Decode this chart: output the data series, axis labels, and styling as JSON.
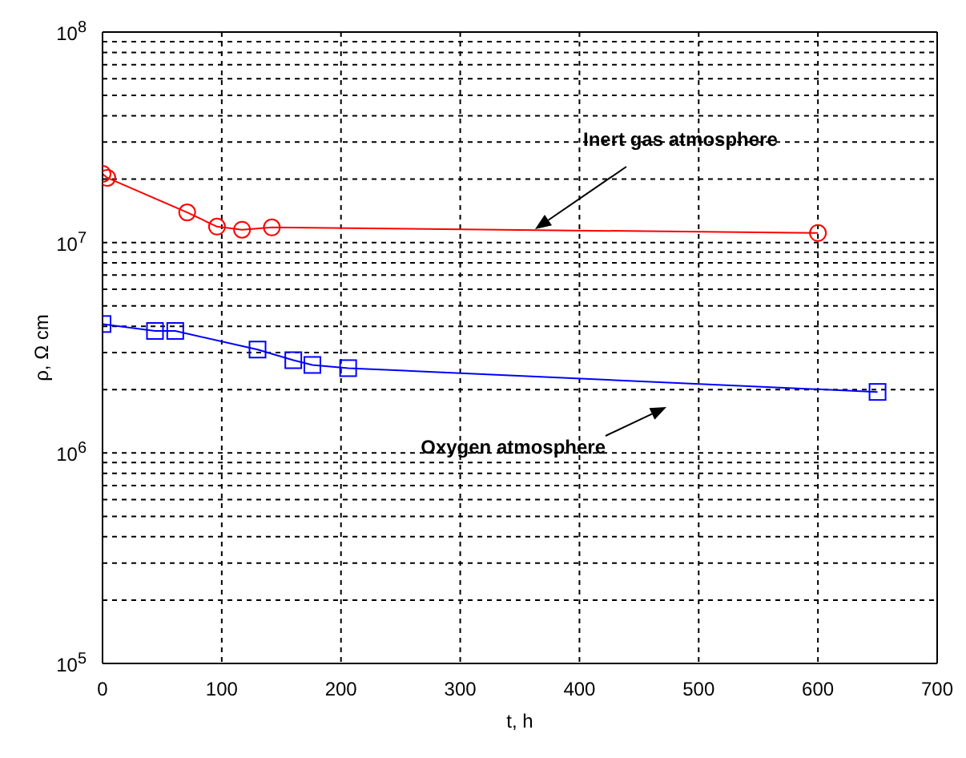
{
  "chart_data": {
    "type": "line",
    "xlabel": "t, h",
    "ylabel": "ρ, Ω cm",
    "log": "y",
    "grid": true,
    "legend": false,
    "line_style": "solid",
    "xlim": [
      0,
      700
    ],
    "xticks": [
      0,
      100,
      200,
      300,
      400,
      500,
      600,
      700
    ],
    "ylim": [
      100000,
      100000000
    ],
    "yticks": [
      {
        "value": 100000,
        "label": "10$^{5}$"
      },
      {
        "value": 200000,
        "label": null
      },
      {
        "value": 300000,
        "label": null
      },
      {
        "value": 400000,
        "label": null
      },
      {
        "value": 500000,
        "label": null
      },
      {
        "value": 600000,
        "label": null
      },
      {
        "value": 700000,
        "label": null
      },
      {
        "value": 800000,
        "label": null
      },
      {
        "value": 900000,
        "label": null
      },
      {
        "value": 1000000,
        "label": "10$^{6}$"
      },
      {
        "value": 2000000,
        "label": null
      },
      {
        "value": 3000000,
        "label": null
      },
      {
        "value": 4000000,
        "label": null
      },
      {
        "value": 5000000,
        "label": null
      },
      {
        "value": 6000000,
        "label": null
      },
      {
        "value": 7000000,
        "label": null
      },
      {
        "value": 8000000,
        "label": null
      },
      {
        "value": 9000000,
        "label": null
      },
      {
        "value": 10000000,
        "label": "10$^{7}$"
      },
      {
        "value": 20000000,
        "label": null
      },
      {
        "value": 30000000,
        "label": null
      },
      {
        "value": 40000000,
        "label": null
      },
      {
        "value": 50000000,
        "label": null
      },
      {
        "value": 60000000,
        "label": null
      },
      {
        "value": 70000000,
        "label": null
      },
      {
        "value": 80000000,
        "label": null
      },
      {
        "value": 90000000,
        "label": null
      },
      {
        "value": 100000000,
        "label": "10$^{8}$"
      }
    ],
    "series": [
      {
        "color": "#ff0000",
        "marker": "circle",
        "x": [
          0,
          4,
          71,
          96,
          117,
          142,
          600
        ],
        "values": [
          21200000,
          20300000,
          13900000,
          11900000,
          11500000,
          11800000,
          11100000
        ]
      },
      {
        "color": "#0000ff",
        "marker": "square",
        "x": [
          0,
          44,
          61,
          130,
          160,
          176,
          206,
          650
        ],
        "values": [
          4100000,
          3800000,
          3800000,
          3100000,
          2760000,
          2620000,
          2530000,
          1950000
        ]
      }
    ],
    "annotations": [
      "Inert gas atmosphere",
      "Oxygen atmosphere"
    ]
  }
}
